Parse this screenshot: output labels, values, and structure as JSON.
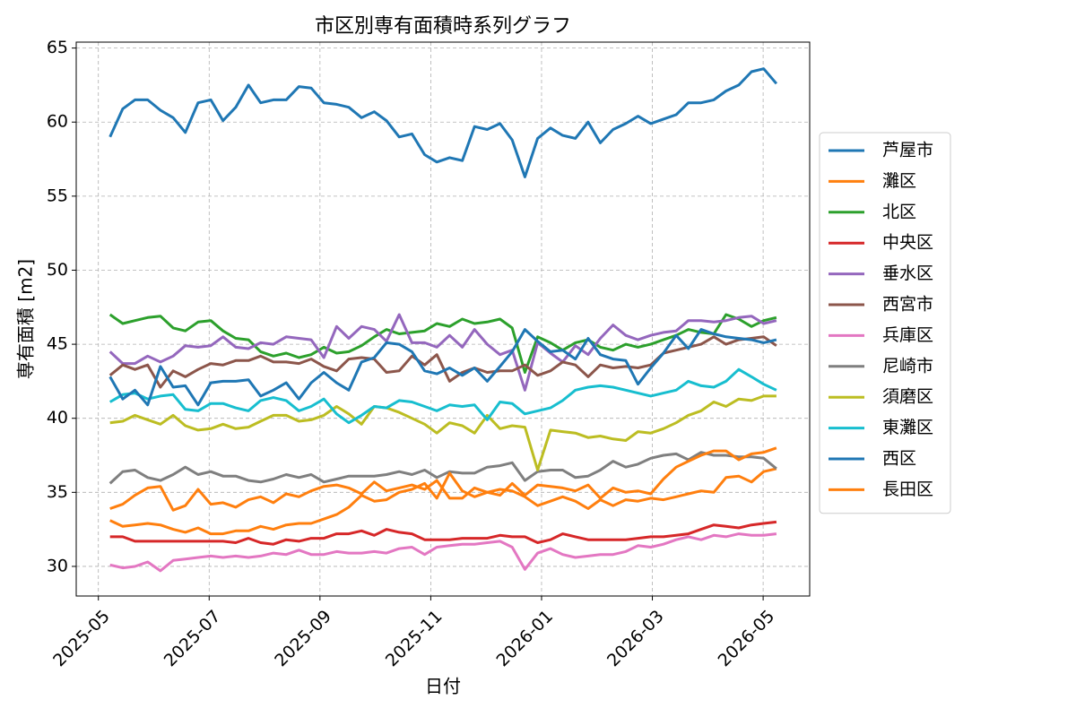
{
  "chart_data": {
    "type": "line",
    "title": "市区別専有面積時系列グラフ",
    "xlabel": "日付",
    "ylabel": "専有面積 [m2]",
    "x": [
      0.21,
      0.44,
      0.66,
      0.89,
      1.12,
      1.35,
      1.57,
      1.8,
      2.03,
      2.25,
      2.48,
      2.71,
      2.93,
      3.16,
      3.39,
      3.62,
      3.84,
      4.07,
      4.3,
      4.52,
      4.75,
      4.98,
      5.2,
      5.43,
      5.66,
      5.89,
      6.11,
      6.34,
      6.57,
      6.79,
      7.02,
      7.25,
      7.47,
      7.7,
      7.93,
      8.16,
      8.38,
      8.61,
      8.84,
      9.06,
      9.29,
      9.52,
      9.74,
      9.97,
      10.2,
      10.43,
      10.65,
      10.88,
      11.11,
      11.33,
      11.56,
      11.79,
      12.01,
      12.24
    ],
    "xlim": [
      -0.4,
      12.84
    ],
    "xticks": [
      {
        "value": 0,
        "label": "2025-05"
      },
      {
        "value": 2,
        "label": "2025-07"
      },
      {
        "value": 4,
        "label": "2025-09"
      },
      {
        "value": 6,
        "label": "2025-11"
      },
      {
        "value": 8,
        "label": "2026-01"
      },
      {
        "value": 10,
        "label": "2026-03"
      },
      {
        "value": 12,
        "label": "2026-05"
      }
    ],
    "ylim": [
      28.0,
      65.4
    ],
    "yticks": [
      30,
      35,
      40,
      45,
      50,
      55,
      60,
      65
    ],
    "grid": true,
    "legend": "right",
    "series": [
      {
        "name": "芦屋市",
        "color": "#1f77b4",
        "values": [
          59.0,
          60.9,
          61.5,
          61.5,
          60.8,
          60.3,
          59.3,
          61.3,
          61.5,
          60.1,
          61.0,
          62.5,
          61.3,
          61.5,
          61.5,
          62.4,
          62.3,
          61.3,
          61.2,
          61.0,
          60.3,
          60.7,
          60.1,
          59.0,
          59.2,
          57.8,
          57.3,
          57.6,
          57.4,
          59.7,
          59.5,
          59.9,
          58.8,
          56.3,
          58.9,
          59.6,
          59.1,
          58.9,
          60.0,
          58.6,
          59.5,
          59.9,
          60.4,
          59.9,
          60.2,
          60.5,
          61.3,
          61.3,
          61.5,
          62.1,
          62.5,
          63.4,
          63.6,
          62.6
        ]
      },
      {
        "name": "灘区",
        "color": "#ff7f0e",
        "values": [
          33.9,
          34.2,
          34.8,
          35.3,
          35.4,
          33.8,
          34.1,
          35.2,
          34.2,
          34.3,
          34.0,
          34.5,
          34.7,
          34.3,
          34.9,
          34.7,
          35.1,
          35.4,
          35.5,
          35.3,
          34.9,
          35.7,
          35.1,
          35.3,
          35.5,
          35.2,
          35.8,
          34.6,
          34.6,
          35.3,
          35.0,
          35.2,
          35.1,
          34.7,
          34.1,
          34.4,
          34.7,
          34.4,
          33.9,
          34.5,
          34.1,
          34.5,
          34.4,
          34.6,
          34.5,
          34.7,
          34.9,
          35.1,
          35.0,
          36.0,
          36.1,
          35.7,
          36.4,
          36.6
        ]
      },
      {
        "name": "北区",
        "color": "#2ca02c",
        "values": [
          47.0,
          46.4,
          46.6,
          46.8,
          46.9,
          46.1,
          45.9,
          46.5,
          46.6,
          45.9,
          45.4,
          45.3,
          44.5,
          44.2,
          44.4,
          44.1,
          44.3,
          44.8,
          44.4,
          44.5,
          44.9,
          45.5,
          46.0,
          45.7,
          45.8,
          45.9,
          46.4,
          46.2,
          46.7,
          46.4,
          46.5,
          46.7,
          46.1,
          43.1,
          45.5,
          45.1,
          44.6,
          45.1,
          45.3,
          44.8,
          44.6,
          45.0,
          44.8,
          45.0,
          45.3,
          45.6,
          46.0,
          45.8,
          45.7,
          47.0,
          46.7,
          46.2,
          46.6,
          46.8
        ]
      },
      {
        "name": "中央区",
        "color": "#d62728",
        "values": [
          32.0,
          32.0,
          31.7,
          31.7,
          31.7,
          31.7,
          31.7,
          31.7,
          31.7,
          31.7,
          31.6,
          31.9,
          31.6,
          31.5,
          31.8,
          31.7,
          31.9,
          31.9,
          32.2,
          32.2,
          32.4,
          32.1,
          32.5,
          32.3,
          32.2,
          31.8,
          31.8,
          31.8,
          31.9,
          31.9,
          31.9,
          32.1,
          32.0,
          32.0,
          31.6,
          31.8,
          32.2,
          32.0,
          31.8,
          31.8,
          31.8,
          31.8,
          31.9,
          32.0,
          32.0,
          32.1,
          32.2,
          32.5,
          32.8,
          32.7,
          32.6,
          32.8,
          32.9,
          33.0
        ]
      },
      {
        "name": "垂水区",
        "color": "#9467bd",
        "values": [
          44.5,
          43.7,
          43.7,
          44.2,
          43.8,
          44.2,
          44.9,
          44.8,
          44.9,
          45.5,
          44.8,
          44.7,
          45.1,
          45.0,
          45.5,
          45.4,
          45.3,
          44.1,
          46.2,
          45.4,
          46.2,
          46.0,
          45.2,
          47.0,
          45.1,
          45.1,
          44.8,
          45.6,
          44.8,
          46.0,
          45.0,
          44.3,
          44.6,
          41.9,
          45.1,
          44.4,
          43.8,
          44.9,
          44.3,
          45.4,
          46.3,
          45.6,
          45.3,
          45.6,
          45.8,
          45.9,
          46.6,
          46.6,
          46.5,
          46.6,
          46.8,
          46.9,
          46.4,
          46.6
        ]
      },
      {
        "name": "西宮市",
        "color": "#8c564b",
        "values": [
          42.9,
          43.6,
          43.3,
          43.6,
          42.1,
          43.2,
          42.8,
          43.3,
          43.7,
          43.6,
          43.9,
          43.9,
          44.2,
          43.8,
          43.8,
          43.7,
          44.0,
          43.5,
          43.2,
          44.0,
          44.1,
          44.0,
          43.1,
          43.2,
          44.2,
          43.6,
          44.3,
          42.5,
          43.1,
          43.4,
          43.1,
          43.2,
          43.2,
          43.6,
          42.9,
          43.2,
          43.8,
          43.6,
          42.8,
          43.6,
          43.4,
          43.5,
          43.4,
          43.6,
          44.4,
          44.6,
          44.8,
          45.0,
          45.5,
          45.0,
          45.3,
          45.4,
          45.5,
          44.9
        ]
      },
      {
        "name": "兵庫区",
        "color": "#e377c2",
        "values": [
          30.1,
          29.9,
          30.0,
          30.3,
          29.7,
          30.4,
          30.5,
          30.6,
          30.7,
          30.6,
          30.7,
          30.6,
          30.7,
          30.9,
          30.8,
          31.1,
          30.8,
          30.8,
          31.0,
          30.9,
          30.9,
          31.0,
          30.9,
          31.2,
          31.3,
          30.8,
          31.3,
          31.4,
          31.5,
          31.5,
          31.6,
          31.7,
          31.3,
          29.8,
          30.9,
          31.2,
          30.8,
          30.6,
          30.7,
          30.8,
          30.8,
          31.0,
          31.4,
          31.3,
          31.5,
          31.8,
          32.0,
          31.8,
          32.1,
          32.0,
          32.2,
          32.1,
          32.1,
          32.2
        ]
      },
      {
        "name": "尼崎市",
        "color": "#7f7f7f",
        "values": [
          35.6,
          36.4,
          36.5,
          36.0,
          35.8,
          36.2,
          36.7,
          36.2,
          36.4,
          36.1,
          36.1,
          35.8,
          35.7,
          35.9,
          36.2,
          36.0,
          36.2,
          35.7,
          35.9,
          36.1,
          36.1,
          36.1,
          36.2,
          36.4,
          36.2,
          36.5,
          36.0,
          36.4,
          36.3,
          36.3,
          36.7,
          36.8,
          37.0,
          35.8,
          36.4,
          36.5,
          36.5,
          36.0,
          36.1,
          36.5,
          37.1,
          36.7,
          36.9,
          37.3,
          37.5,
          37.6,
          37.2,
          37.7,
          37.5,
          37.5,
          37.4,
          37.4,
          37.3,
          36.6
        ]
      },
      {
        "name": "須磨区",
        "color": "#bcbd22",
        "values": [
          39.7,
          39.8,
          40.2,
          39.9,
          39.6,
          40.2,
          39.5,
          39.2,
          39.3,
          39.6,
          39.3,
          39.4,
          39.8,
          40.2,
          40.2,
          39.8,
          39.9,
          40.2,
          40.8,
          40.3,
          39.6,
          40.8,
          40.7,
          40.4,
          40.0,
          39.6,
          39.0,
          39.7,
          39.5,
          39.0,
          40.2,
          39.3,
          39.5,
          39.4,
          36.5,
          39.2,
          39.1,
          39.0,
          38.7,
          38.8,
          38.6,
          38.5,
          39.1,
          39.0,
          39.3,
          39.7,
          40.2,
          40.5,
          41.1,
          40.8,
          41.3,
          41.2,
          41.5,
          41.5
        ]
      },
      {
        "name": "東灘区",
        "color": "#17becf",
        "values": [
          41.1,
          41.6,
          41.7,
          41.3,
          41.5,
          41.6,
          40.6,
          40.5,
          41.0,
          41.0,
          40.7,
          40.5,
          41.2,
          41.4,
          41.2,
          40.5,
          40.8,
          41.3,
          40.3,
          39.7,
          40.2,
          40.8,
          40.7,
          41.2,
          41.1,
          40.8,
          40.5,
          40.9,
          40.8,
          40.9,
          39.9,
          41.1,
          41.0,
          40.3,
          40.5,
          40.7,
          41.2,
          41.9,
          42.1,
          42.2,
          42.1,
          41.9,
          41.7,
          41.5,
          41.7,
          41.9,
          42.5,
          42.2,
          42.1,
          42.5,
          43.3,
          42.8,
          42.3,
          41.9
        ]
      },
      {
        "name": "西区",
        "color": "#1f77b4",
        "values": [
          42.8,
          41.3,
          41.9,
          40.9,
          43.5,
          42.1,
          42.2,
          40.9,
          42.4,
          42.5,
          42.5,
          42.6,
          41.5,
          41.9,
          42.4,
          41.3,
          42.4,
          43.1,
          42.4,
          41.9,
          43.8,
          44.1,
          45.1,
          45.0,
          44.5,
          43.2,
          43.0,
          43.4,
          42.9,
          43.4,
          42.5,
          43.5,
          44.5,
          46.0,
          45.2,
          44.5,
          44.6,
          44.0,
          45.4,
          44.3,
          44.0,
          43.9,
          42.3,
          43.4,
          44.4,
          45.6,
          44.7,
          46.0,
          45.7,
          45.5,
          45.4,
          45.3,
          45.1,
          45.3
        ]
      },
      {
        "name": "長田区",
        "color": "#ff7f0e",
        "values": [
          33.1,
          32.7,
          32.8,
          32.9,
          32.8,
          32.5,
          32.3,
          32.6,
          32.2,
          32.2,
          32.4,
          32.4,
          32.7,
          32.5,
          32.8,
          32.9,
          32.9,
          33.2,
          33.5,
          34.0,
          34.8,
          34.4,
          34.5,
          35.0,
          35.2,
          35.6,
          34.6,
          36.3,
          35.1,
          34.7,
          35.0,
          34.8,
          35.6,
          34.8,
          35.5,
          35.4,
          35.3,
          35.1,
          35.5,
          34.6,
          35.3,
          35.0,
          35.1,
          34.9,
          35.9,
          36.7,
          37.1,
          37.5,
          37.8,
          37.8,
          37.2,
          37.6,
          37.7,
          38.0
        ]
      }
    ]
  }
}
